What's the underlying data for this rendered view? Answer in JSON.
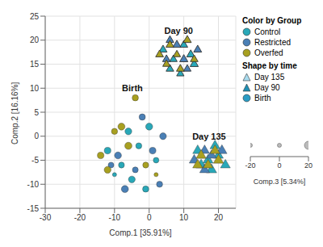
{
  "chart_data": {
    "type": "scatter",
    "x_label": "Comp.1 [35.91%]",
    "y_label": "Comp.2 [16.16%]",
    "z_label": "Comp.3 [5.34%]",
    "xlim": [
      -30,
      25
    ],
    "xticks": [
      -30,
      -20,
      -10,
      0,
      10,
      20
    ],
    "ylim": [
      -15,
      25
    ],
    "yticks": [
      -15,
      -10,
      -5,
      0,
      5,
      10,
      15,
      20,
      25
    ],
    "zlim": [
      -20,
      20
    ],
    "zticks": [
      -20,
      0,
      20
    ],
    "grid": true,
    "legend_titles": [
      "Color by Group",
      "Shape by time"
    ],
    "times": [
      {
        "name": "Day 135",
        "marker": "triangle",
        "color": "#a9dcef"
      },
      {
        "name": "Day 90",
        "marker": "triangle",
        "color": "#1f8fb3"
      },
      {
        "name": "Birth",
        "marker": "circle",
        "color": "#2a9cc4"
      }
    ],
    "annotations": [
      "Day 90",
      "Birth",
      "Day 135"
    ],
    "series": [
      {
        "name": "Control",
        "color": "#29a8b8",
        "values": {
          "Birth": [
            [
              -12,
              -3,
              2
            ],
            [
              -8,
              -6,
              -5
            ],
            [
              -5,
              -9,
              3
            ],
            [
              -3,
              -2,
              -4
            ],
            [
              0,
              2,
              6
            ],
            [
              -10,
              -8,
              0
            ],
            [
              2,
              -5,
              -8
            ],
            [
              -6,
              1,
              4
            ],
            [
              -1,
              -11,
              -2
            ]
          ],
          "Day 90": [
            [
              4,
              18,
              -5
            ],
            [
              7,
              16,
              -8
            ],
            [
              10,
              19,
              -6
            ],
            [
              12,
              17,
              -4
            ],
            [
              6,
              14,
              -7
            ],
            [
              9,
              13,
              -9
            ],
            [
              13,
              15,
              -3
            ]
          ],
          "Day 135": [
            [
              14,
              -3,
              10
            ],
            [
              17,
              -5,
              12
            ],
            [
              20,
              -4,
              9
            ],
            [
              15,
              -6,
              13
            ],
            [
              19,
              -2,
              11
            ],
            [
              22,
              -6,
              10
            ],
            [
              18,
              -7,
              14
            ]
          ]
        }
      },
      {
        "name": "Restricted",
        "color": "#4a7fb5",
        "values": {
          "Birth": [
            [
              -9,
              -4,
              5
            ],
            [
              -4,
              -7,
              -6
            ],
            [
              1,
              -3,
              2
            ],
            [
              3,
              -10,
              -3
            ],
            [
              -7,
              -11,
              7
            ],
            [
              -2,
              4,
              -1
            ],
            [
              4,
              0,
              3
            ],
            [
              -11,
              -6,
              -7
            ]
          ],
          "Day 90": [
            [
              5,
              16,
              -6
            ],
            [
              8,
              19,
              -4
            ],
            [
              11,
              14,
              -8
            ],
            [
              14,
              18,
              -5
            ],
            [
              6,
              20,
              -7
            ],
            [
              10,
              16,
              -3
            ]
          ],
          "Day 135": [
            [
              13,
              -5,
              11
            ],
            [
              16,
              -3,
              9
            ],
            [
              21,
              -3,
              12
            ],
            [
              16,
              -7,
              10
            ],
            [
              18,
              -4,
              8
            ]
          ]
        }
      },
      {
        "name": "Overfed",
        "color": "#a8a020",
        "values": {
          "Birth": [
            [
              -14,
              -4,
              1
            ],
            [
              -8,
              2,
              6
            ],
            [
              -4,
              8,
              -2
            ],
            [
              -12,
              -7,
              4
            ],
            [
              -1,
              -6,
              -5
            ],
            [
              -6,
              -2,
              8
            ],
            [
              2,
              -8,
              0
            ],
            [
              -10,
              1,
              -3
            ]
          ],
          "Day 90": [
            [
              3,
              17,
              -6
            ],
            [
              6,
              19,
              -5
            ],
            [
              8,
              17,
              -9
            ],
            [
              11,
              20,
              -4
            ],
            [
              13,
              16,
              -7
            ],
            [
              9,
              14,
              -6
            ],
            [
              5,
              15,
              -8
            ]
          ],
          "Day 135": [
            [
              15,
              -4,
              12
            ],
            [
              17,
              -6,
              9
            ],
            [
              20,
              -5,
              13
            ],
            [
              19,
              -3,
              10
            ],
            [
              14,
              -6,
              11
            ]
          ]
        }
      }
    ]
  }
}
